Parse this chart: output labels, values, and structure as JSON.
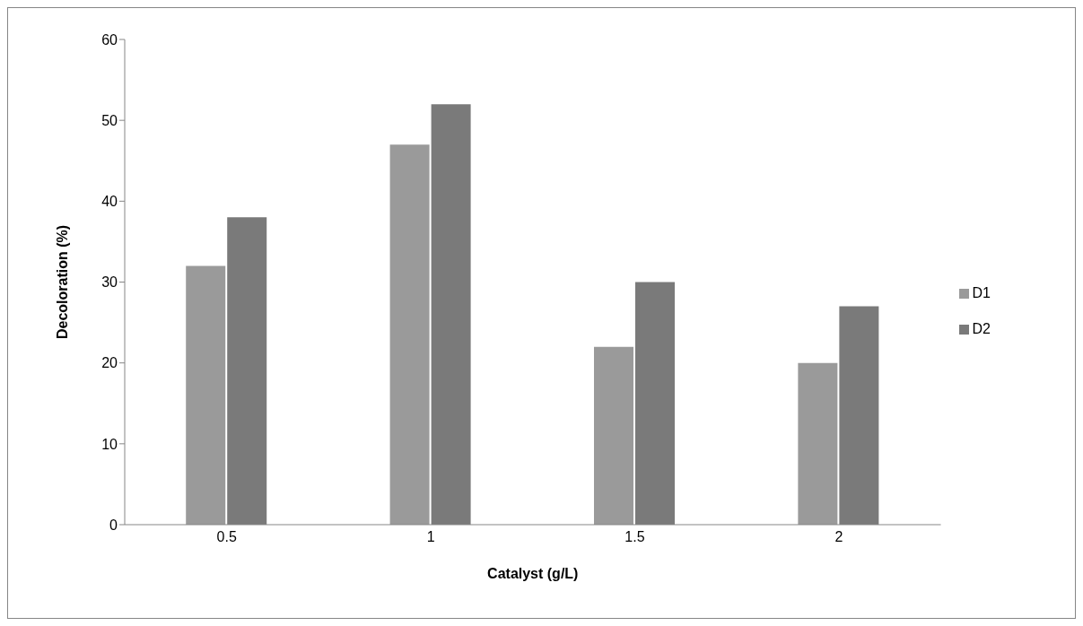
{
  "chart_data": {
    "type": "bar",
    "xlabel": "Catalyst (g/L)",
    "ylabel": "Decoloration (%)",
    "categories": [
      "0.5",
      "1",
      "1.5",
      "2"
    ],
    "series": [
      {
        "name": "D1",
        "color": "#9a9a9a",
        "values": [
          32,
          47,
          22,
          20
        ]
      },
      {
        "name": "D2",
        "color": "#7a7a7a",
        "values": [
          38,
          52,
          30,
          27
        ]
      }
    ],
    "ylim": [
      0,
      60
    ],
    "yticks": [
      0,
      10,
      20,
      30,
      40,
      50,
      60
    ],
    "grid": false,
    "legend": "right"
  }
}
